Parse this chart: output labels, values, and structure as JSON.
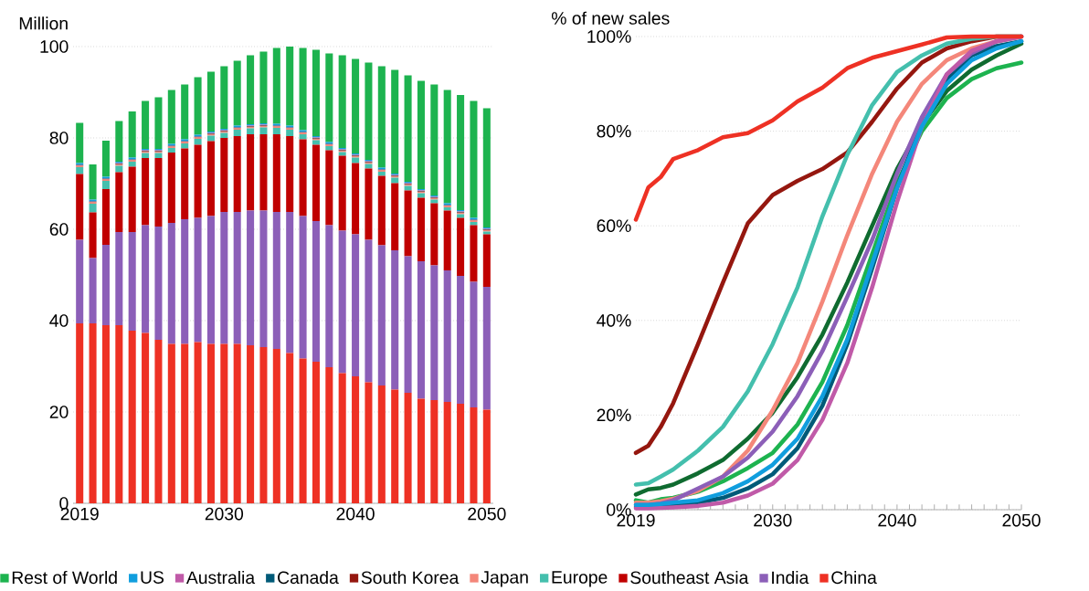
{
  "chart_data": [
    {
      "type": "bar",
      "stacked": true,
      "ylabel": "Million",
      "categories": [
        "2019",
        null,
        null,
        null,
        null,
        null,
        null,
        null,
        null,
        null,
        null,
        "2030",
        null,
        null,
        null,
        null,
        null,
        null,
        null,
        null,
        null,
        "2040",
        null,
        null,
        null,
        null,
        null,
        null,
        null,
        null,
        null,
        "2050"
      ],
      "ylim": [
        0,
        100
      ],
      "yticks": [
        0,
        20,
        40,
        60,
        80,
        100
      ],
      "grid": "y",
      "legend": "bottom",
      "series": [
        {
          "name": "China",
          "color": "#ee3124",
          "values": [
            39.4,
            39.4,
            39.0,
            39.0,
            37.8,
            37.3,
            35.8,
            34.9,
            34.9,
            35.3,
            34.9,
            34.9,
            34.9,
            34.6,
            34.2,
            33.8,
            32.9,
            31.7,
            31.0,
            29.8,
            28.5,
            27.8,
            26.5,
            25.8,
            24.9,
            24.2,
            22.9,
            22.6,
            22.2,
            21.8,
            21.0,
            20.5
          ]
        },
        {
          "name": "India",
          "color": "#8c5fb8",
          "values": [
            18.3,
            14.3,
            17.6,
            20.4,
            21.6,
            23.6,
            24.8,
            26.5,
            27.3,
            27.2,
            28.0,
            28.9,
            28.9,
            29.5,
            29.9,
            30.0,
            30.9,
            31.2,
            30.8,
            31.1,
            31.2,
            31.1,
            31.2,
            30.7,
            30.5,
            29.9,
            30.1,
            29.5,
            28.8,
            28.0,
            27.5,
            26.9
          ]
        },
        {
          "name": "Southeast Asia",
          "color": "#c00000",
          "values": [
            14.4,
            10.0,
            12.2,
            13.1,
            14.3,
            14.7,
            15.0,
            15.4,
            15.5,
            16.0,
            16.4,
            16.2,
            16.6,
            16.7,
            16.7,
            17.0,
            16.6,
            16.8,
            16.7,
            16.4,
            16.4,
            15.6,
            15.6,
            15.2,
            14.7,
            14.4,
            13.9,
            13.6,
            13.1,
            12.7,
            12.4,
            11.5
          ]
        },
        {
          "name": "Europe",
          "color": "#44bfad",
          "values": [
            1.5,
            1.9,
            1.8,
            1.4,
            1.1,
            1.1,
            1.1,
            1.0,
            1.1,
            1.3,
            1.2,
            1.1,
            1.4,
            1.3,
            1.5,
            1.4,
            1.4,
            1.1,
            1.0,
            0.9,
            0.8,
            1.2,
            1.0,
            0.9,
            1.2,
            1.0,
            1.0,
            0.8,
            0.7,
            0.8,
            0.7,
            0.6
          ]
        },
        {
          "name": "Japan",
          "color": "#f4877a",
          "values": [
            0.3,
            0.3,
            0.3,
            0.3,
            0.3,
            0.3,
            0.3,
            0.3,
            0.3,
            0.3,
            0.3,
            0.3,
            0.3,
            0.3,
            0.3,
            0.3,
            0.3,
            0.3,
            0.3,
            0.3,
            0.3,
            0.3,
            0.3,
            0.3,
            0.3,
            0.3,
            0.3,
            0.3,
            0.3,
            0.3,
            0.3,
            0.3
          ]
        },
        {
          "name": "South Korea",
          "color": "#95170f",
          "values": [
            0.1,
            0.1,
            0.1,
            0.1,
            0.1,
            0.1,
            0.1,
            0.1,
            0.1,
            0.1,
            0.1,
            0.1,
            0.1,
            0.1,
            0.1,
            0.1,
            0.1,
            0.1,
            0.1,
            0.1,
            0.1,
            0.1,
            0.1,
            0.1,
            0.1,
            0.1,
            0.1,
            0.1,
            0.1,
            0.1,
            0.1,
            0.1
          ]
        },
        {
          "name": "Canada",
          "color": "#005a78",
          "values": [
            0.1,
            0.1,
            0.1,
            0.1,
            0.1,
            0.1,
            0.1,
            0.1,
            0.1,
            0.1,
            0.1,
            0.1,
            0.1,
            0.1,
            0.1,
            0.1,
            0.1,
            0.1,
            0.1,
            0.1,
            0.1,
            0.1,
            0.1,
            0.1,
            0.1,
            0.1,
            0.1,
            0.1,
            0.1,
            0.1,
            0.1,
            0.1
          ]
        },
        {
          "name": "Australia",
          "color": "#c05aa8",
          "values": [
            0.1,
            0.1,
            0.1,
            0.1,
            0.1,
            0.1,
            0.1,
            0.1,
            0.1,
            0.1,
            0.1,
            0.1,
            0.1,
            0.1,
            0.1,
            0.1,
            0.1,
            0.1,
            0.1,
            0.1,
            0.1,
            0.1,
            0.1,
            0.1,
            0.1,
            0.1,
            0.1,
            0.1,
            0.1,
            0.1,
            0.1,
            0.1
          ]
        },
        {
          "name": "US",
          "color": "#109ede",
          "values": [
            0.3,
            0.3,
            0.3,
            0.3,
            0.3,
            0.3,
            0.3,
            0.3,
            0.3,
            0.3,
            0.3,
            0.3,
            0.3,
            0.3,
            0.3,
            0.3,
            0.3,
            0.3,
            0.3,
            0.3,
            0.3,
            0.3,
            0.3,
            0.3,
            0.3,
            0.3,
            0.3,
            0.3,
            0.3,
            0.3,
            0.3,
            0.3
          ]
        },
        {
          "name": "Rest of World",
          "color": "#1db34f",
          "values": [
            8.8,
            7.7,
            7.9,
            8.9,
            10.1,
            10.5,
            11.3,
            11.8,
            12.0,
            12.6,
            13.1,
            13.7,
            14.2,
            15.1,
            15.7,
            16.6,
            17.3,
            18.0,
            18.9,
            19.4,
            20.3,
            20.7,
            21.3,
            22.2,
            22.7,
            23.3,
            23.7,
            24.3,
            24.8,
            25.2,
            25.6,
            26.1
          ]
        }
      ]
    },
    {
      "type": "line",
      "ylabel": "% of new sales",
      "marker": "none",
      "x": [
        2019,
        2020,
        2021,
        2022,
        2024,
        2026,
        2028,
        2030,
        2032,
        2034,
        2036,
        2038,
        2040,
        2042,
        2044,
        2046,
        2048,
        2050
      ],
      "xlim": [
        2019,
        2050
      ],
      "xticks": [
        2019,
        {
          "value": 2020,
          "label": null
        },
        {
          "value": 2021,
          "label": null
        },
        {
          "value": 2022,
          "label": null
        },
        {
          "value": 2023,
          "label": null
        },
        {
          "value": 2024,
          "label": null
        },
        {
          "value": 2025,
          "label": null
        },
        {
          "value": 2026,
          "label": null
        },
        {
          "value": 2027,
          "label": null
        },
        {
          "value": 2028,
          "label": null
        },
        {
          "value": 2029,
          "label": null
        },
        2030,
        {
          "value": 2031,
          "label": null
        },
        {
          "value": 2032,
          "label": null
        },
        {
          "value": 2033,
          "label": null
        },
        {
          "value": 2034,
          "label": null
        },
        {
          "value": 2035,
          "label": null
        },
        {
          "value": 2036,
          "label": null
        },
        {
          "value": 2037,
          "label": null
        },
        {
          "value": 2038,
          "label": null
        },
        {
          "value": 2039,
          "label": null
        },
        2040,
        {
          "value": 2041,
          "label": null
        },
        {
          "value": 2042,
          "label": null
        },
        {
          "value": 2043,
          "label": null
        },
        {
          "value": 2044,
          "label": null
        },
        {
          "value": 2045,
          "label": null
        },
        {
          "value": 2046,
          "label": null
        },
        {
          "value": 2047,
          "label": null
        },
        {
          "value": 2048,
          "label": null
        },
        {
          "value": 2049,
          "label": null
        },
        2050
      ],
      "ylim": [
        0,
        100
      ],
      "yticks": [
        {
          "value": 0,
          "label": "0%"
        },
        {
          "value": 20,
          "label": "20%"
        },
        {
          "value": 40,
          "label": "40%"
        },
        {
          "value": 60,
          "label": "60%"
        },
        {
          "value": 80,
          "label": "80%"
        },
        {
          "value": 100,
          "label": "100%"
        }
      ],
      "grid": "y",
      "series": [
        {
          "color": "#0f6b30",
          "values": [
            3.2,
            4.3,
            4.6,
            5.3,
            7.7,
            10.5,
            15,
            20.5,
            28,
            37,
            48,
            60,
            72,
            81.5,
            88.5,
            93,
            96,
            98.5
          ]
        },
        {
          "color": "#1db34f",
          "values": [
            2,
            1.5,
            2.2,
            2.5,
            3.8,
            6,
            8.8,
            12,
            18,
            27,
            39,
            54,
            69,
            80,
            87,
            91,
            93.3,
            94.5
          ]
        },
        {
          "color": "#005a78",
          "values": [
            0.6,
            0.6,
            0.8,
            1,
            1.5,
            2.5,
            4.5,
            7.5,
            13,
            22,
            35,
            51,
            68,
            82,
            91,
            96,
            98,
            99
          ]
        },
        {
          "color": "#95170f",
          "values": [
            12,
            13.5,
            17.5,
            22.5,
            35,
            48,
            60.5,
            66.5,
            69.5,
            72,
            75.5,
            82,
            89,
            94.5,
            97.5,
            99,
            100,
            100
          ]
        },
        {
          "color": "#f4877a",
          "values": [
            1.5,
            1.5,
            1.8,
            2.3,
            4,
            7,
            12.5,
            21,
            31,
            44,
            58,
            71,
            82,
            90,
            95,
            97.5,
            99,
            100
          ]
        },
        {
          "color": "#44bfad",
          "values": [
            5.3,
            5.6,
            7,
            8.5,
            12.5,
            17.5,
            25,
            35,
            47,
            62,
            75,
            85.5,
            92.5,
            96,
            98.5,
            99.5,
            100,
            100
          ]
        },
        {
          "color": "#8c5fb8",
          "values": [
            1,
            1,
            1.3,
            2,
            4.5,
            7,
            11,
            16.5,
            24,
            33.5,
            45,
            57,
            71,
            83,
            92,
            96.5,
            99,
            100
          ]
        },
        {
          "color": "#c05aa8",
          "values": [
            0.3,
            0.3,
            0.4,
            0.5,
            0.8,
            1.5,
            3,
            5.5,
            10.5,
            19,
            31,
            47,
            65,
            81,
            92,
            97,
            99,
            100
          ]
        },
        {
          "color": "#109ede",
          "values": [
            1,
            1,
            1.2,
            1.5,
            2,
            3.5,
            6,
            9.5,
            15,
            24,
            36,
            52,
            68,
            81,
            90,
            95,
            97.5,
            99
          ]
        },
        {
          "color": "#ee3124",
          "values": [
            61.3,
            68.1,
            70.3,
            74.1,
            76,
            78.7,
            79.6,
            82.3,
            86.3,
            89.2,
            93.3,
            95.5,
            96.9,
            98.3,
            99.8,
            100,
            100,
            100
          ]
        }
      ]
    }
  ]
}
